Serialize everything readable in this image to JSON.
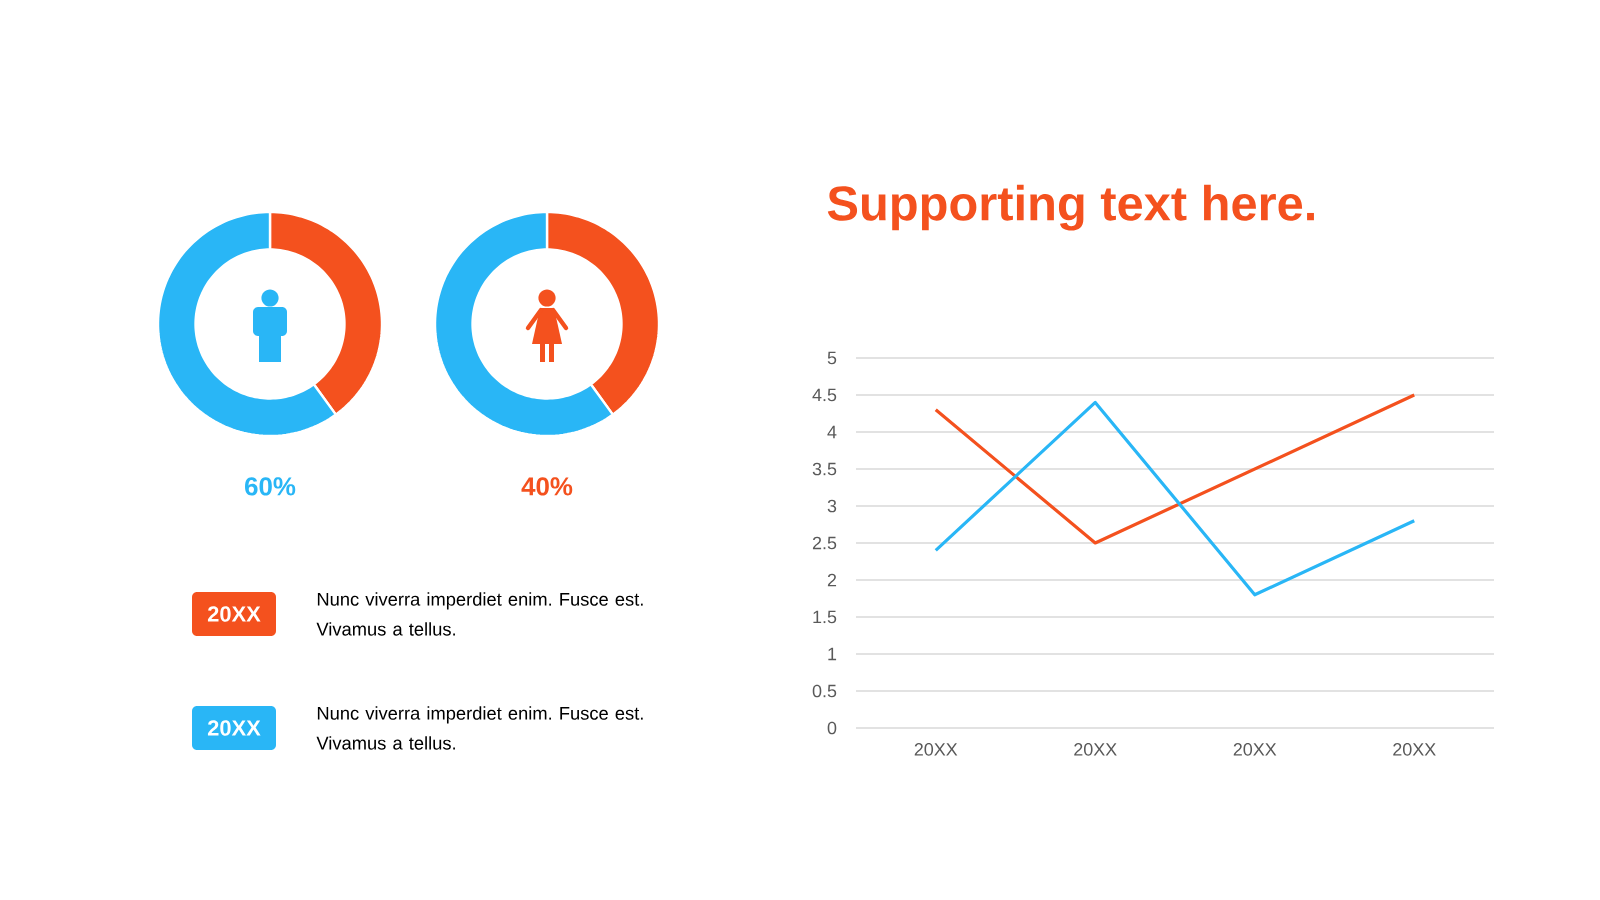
{
  "chart_data": [
    {
      "type": "donut",
      "categories": [
        null,
        null
      ],
      "values": [
        40,
        60
      ],
      "colors": [
        "#f4511e",
        "#29b6f6"
      ],
      "annotations": [
        "60%"
      ]
    },
    {
      "type": "donut",
      "categories": [
        null,
        null
      ],
      "values": [
        40,
        60
      ],
      "colors": [
        "#f4511e",
        "#29b6f6"
      ],
      "annotations": [
        "40%"
      ]
    },
    {
      "type": "other",
      "annotations": [
        "20XX",
        "Nunc viverra imperdiet enim. Fusce est. Vivamus a tellus.",
        "20XX",
        "Nunc viverra imperdiet enim. Fusce est. Vivamus a tellus."
      ]
    },
    {
      "type": "line",
      "title": "Supporting text here.",
      "categories": [
        "20XX",
        "20XX",
        "20XX",
        "20XX"
      ],
      "series": [
        {
          "color": "#f4511e",
          "values": [
            4.3,
            2.5,
            3.5,
            4.5
          ]
        },
        {
          "color": "#29b6f6",
          "values": [
            2.4,
            4.4,
            1.8,
            2.8
          ]
        }
      ],
      "ylim": [
        0,
        5
      ],
      "yticks": [
        0,
        0.5,
        1,
        1.5,
        2,
        2.5,
        3,
        3.5,
        4,
        4.5,
        5
      ],
      "grid": "y"
    }
  ]
}
